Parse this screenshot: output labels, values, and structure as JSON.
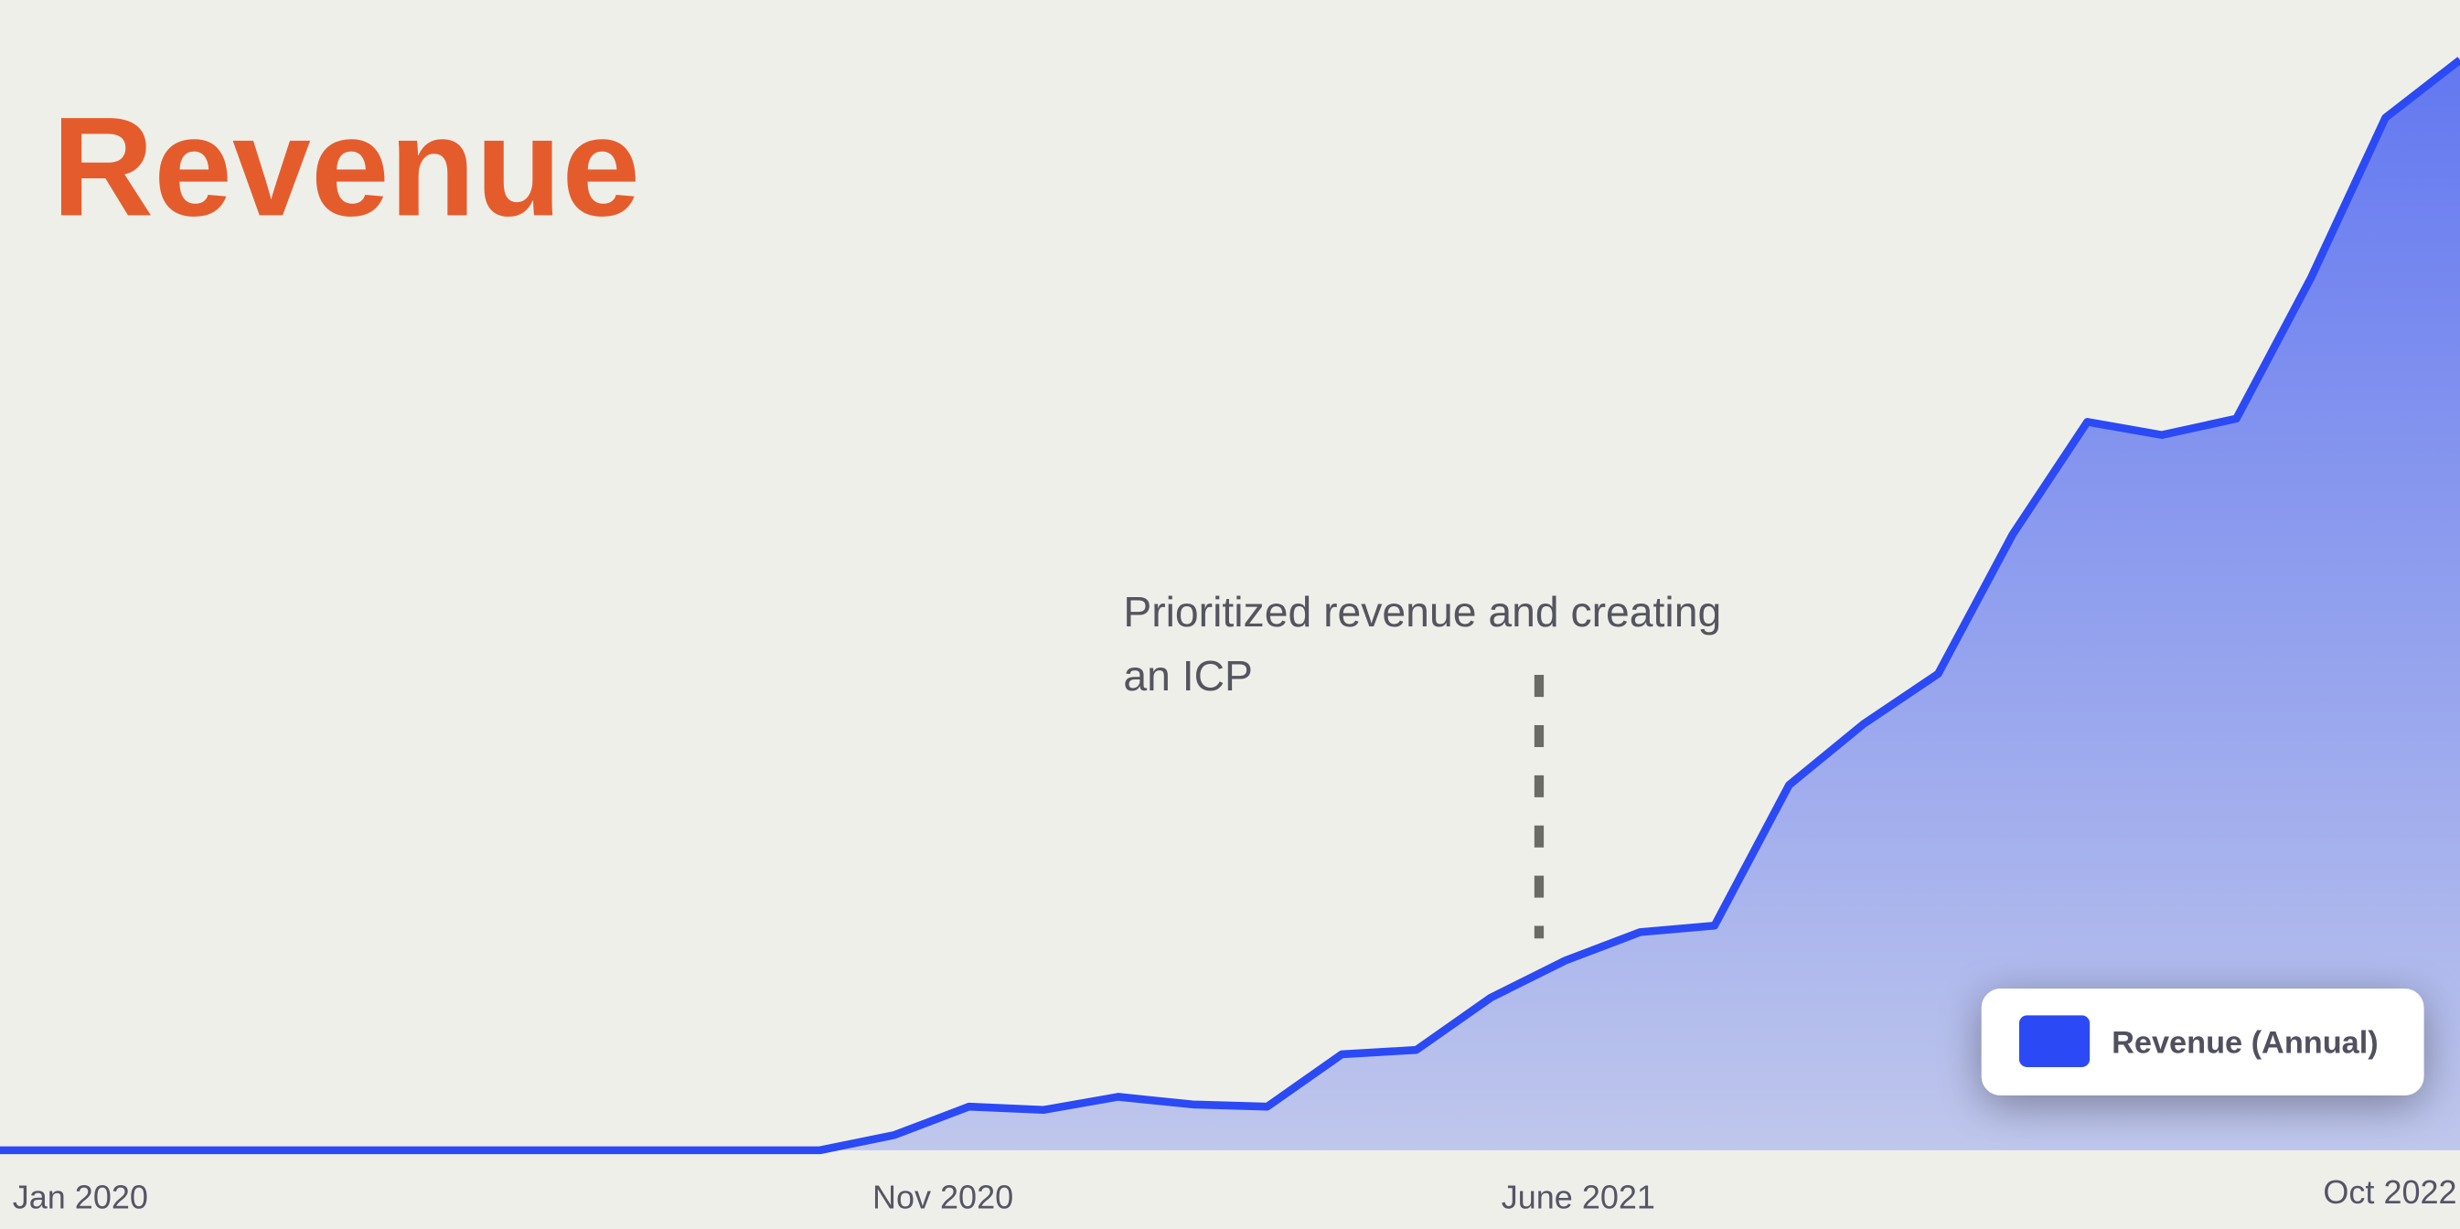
{
  "colors": {
    "background": "#efefea",
    "title": "#e55c2c",
    "line": "#2b4af5",
    "fill_top": "#6378f0",
    "fill_bottom": "#bfc7ec",
    "annotation_line": "#6b6b66"
  },
  "chart_data": {
    "type": "area",
    "title": "Revenue",
    "xlabel": "",
    "ylabel": "",
    "y_axis_shown": false,
    "grid": false,
    "legend_position": "bottom-right",
    "x_tick_labels": [
      "Jan 2020",
      "Nov 2020",
      "June 2021",
      "Oct 2022"
    ],
    "x": [
      "2020-01",
      "2020-02",
      "2020-03",
      "2020-04",
      "2020-05",
      "2020-06",
      "2020-07",
      "2020-08",
      "2020-09",
      "2020-10",
      "2020-11",
      "2020-12",
      "2021-01",
      "2021-02",
      "2021-03",
      "2021-04",
      "2021-05",
      "2021-06",
      "2021-07",
      "2021-08",
      "2021-09",
      "2021-10",
      "2021-11",
      "2021-12",
      "2022-01",
      "2022-02",
      "2022-03",
      "2022-04",
      "2022-05",
      "2022-06",
      "2022-07",
      "2022-08",
      "2022-09",
      "2022-10"
    ],
    "series": [
      {
        "name": "Revenue (Annual)",
        "values": [
          0,
          0,
          0,
          0,
          0,
          0,
          0,
          0,
          0,
          0,
          0,
          0,
          1.4,
          4.0,
          3.7,
          4.9,
          4.2,
          4.0,
          8.8,
          9.2,
          14.0,
          17.4,
          20.0,
          20.6,
          33.5,
          39.1,
          43.7,
          56.5,
          66.8,
          65.6,
          67.1,
          80.0,
          94.7,
          100
        ]
      }
    ],
    "ylim": [
      0,
      100
    ],
    "annotations": [
      {
        "text_line1": "Prioritized revenue and creating",
        "text_line2": "an ICP"
      }
    ]
  }
}
